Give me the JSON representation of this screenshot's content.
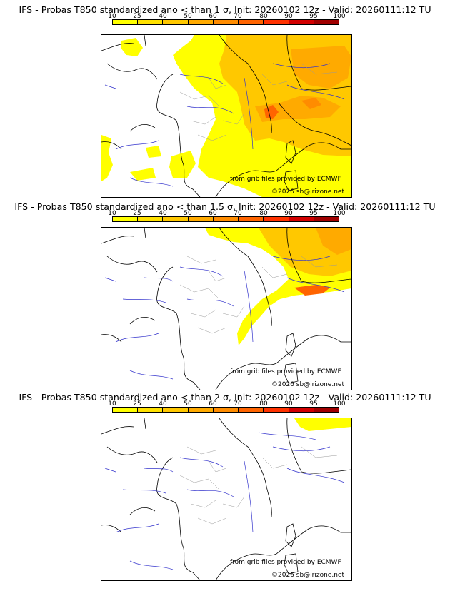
{
  "scale": {
    "labels": [
      "10",
      "25",
      "40",
      "50",
      "60",
      "70",
      "80",
      "90",
      "95",
      "100"
    ],
    "colors": [
      "#ffff00",
      "#ffe100",
      "#ffc800",
      "#ffaa00",
      "#ff8c00",
      "#ff6400",
      "#ff3200",
      "#d20000",
      "#a00000",
      "#640000"
    ]
  },
  "panels": [
    {
      "title": "IFS - Probas T850  standardized ano < than 1 σ, Init: 20260102 12z - Valid: 20260111:12 TU",
      "credit_src": "from grib files provided by ECMWF",
      "credit_copy": "©2026 sb@irizone.net"
    },
    {
      "title": "IFS - Probas T850  standardized ano < than 1.5 σ, Init: 20260102 12z - Valid: 20260111:12 TU",
      "credit_src": "from grib files provided by ECMWF",
      "credit_copy": "©2026 sb@irizone.net"
    },
    {
      "title": "IFS - Probas T850  standardized ano < than 2 σ, Init: 20260102 12z - Valid: 20260111:12 TU",
      "credit_src": "from grib files provided by ECMWF",
      "credit_copy": "©2026 sb@irizone.net"
    }
  ]
}
